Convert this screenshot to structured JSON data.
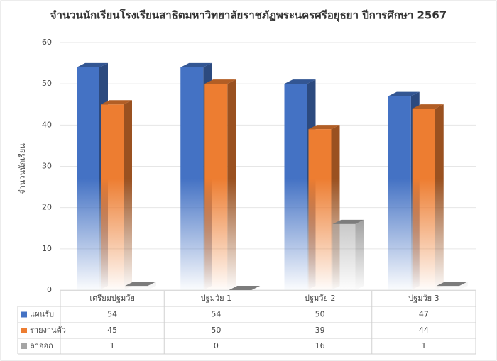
{
  "chart_data": {
    "type": "bar3d",
    "title": "จำนวนนักเรียนโรงเรียนสาธิตมหาวิทยาลัยราชภัฏพระนครศรีอยุธยา ปีการศึกษา 2567",
    "y_label": "จำนวนนักเรียน",
    "categories": [
      "เตรียมปฐมวัย",
      "ปฐมวัย 1",
      "ปฐมวัย 2",
      "ปฐมวัย 3"
    ],
    "series": [
      {
        "name": "แผนรับ",
        "color": "#4472c4",
        "values": [
          54,
          54,
          50,
          47
        ]
      },
      {
        "name": "รายงานตัว",
        "color": "#ed7d31",
        "values": [
          45,
          50,
          39,
          44
        ]
      },
      {
        "name": "ลาออก",
        "color": "#a5a5a5",
        "values": [
          1,
          0,
          16,
          1
        ]
      }
    ],
    "ylim": [
      0,
      60
    ],
    "yticks": [
      0,
      10,
      20,
      30,
      40,
      50,
      60
    ],
    "grid": true
  }
}
